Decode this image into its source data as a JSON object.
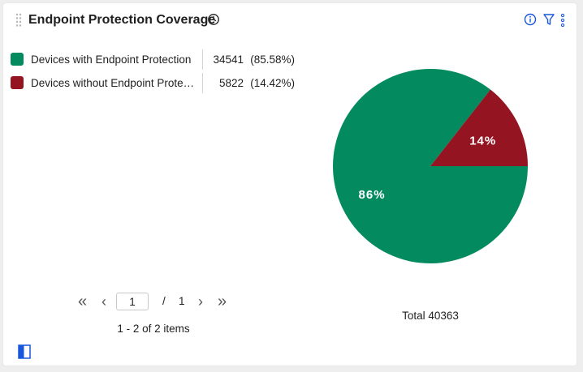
{
  "widget": {
    "title": "Endpoint Protection Coverage"
  },
  "icons": {
    "drag": "drag-handle-icon",
    "clock": "clock-icon",
    "info": "info-icon",
    "filter": "filter-icon",
    "more": "more-vertical-icon",
    "panel": "panel-toggle-icon"
  },
  "colors": {
    "accent": "#1a56db",
    "with": "#038a5f",
    "without": "#951421"
  },
  "chart_data": {
    "type": "pie",
    "title": "Endpoint Protection Coverage",
    "slices": [
      {
        "label": "Devices with Endpoint Protection",
        "value": 34541,
        "percent_text": "(85.58%)",
        "slice_label": "86%",
        "color": "#038a5f"
      },
      {
        "label": "Devices without Endpoint Protection",
        "value": 5822,
        "percent_text": "(14.42%)",
        "slice_label": "14%",
        "color": "#951421"
      }
    ],
    "total_text": "Total 40363",
    "legend_position": "top-left"
  },
  "legend": {
    "items": [
      {
        "label": "Devices with Endpoint Protection",
        "value": "34541",
        "percent": "(85.58%)"
      },
      {
        "label": "Devices without Endpoint Protection",
        "value": "5822",
        "percent": "(14.42%)"
      }
    ]
  },
  "pagination": {
    "first": "«",
    "prev": "‹",
    "page": "1",
    "slash": "/",
    "total_pages": "1",
    "next": "›",
    "last": "»",
    "items_text": "1 - 2 of 2 items"
  }
}
